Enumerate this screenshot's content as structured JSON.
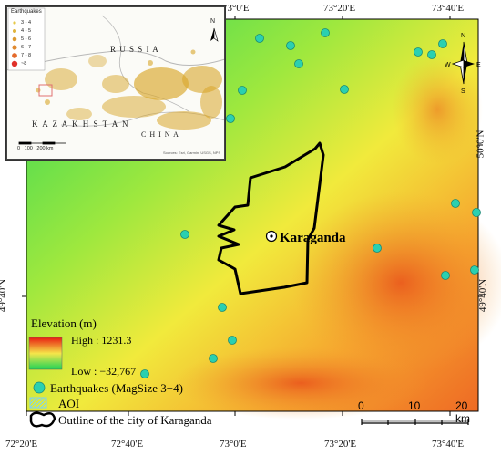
{
  "map": {
    "lon_labels_top": [
      "73°0'E",
      "73°20'E",
      "73°40'E"
    ],
    "lon_labels_bottom": [
      "72°20'E",
      "72°40'E",
      "73°0'E",
      "73°20'E",
      "73°40'E"
    ],
    "lat_labels_right": [
      "50°0'N",
      "49°40'N"
    ],
    "lat_labels_left": [
      "49°40'N"
    ],
    "city_label": "Karaganda",
    "colors": {
      "high": "#e81c10",
      "mid": "#f6e64a",
      "low": "#1ed456",
      "quake": "#2ad0b0",
      "outline": "#000000"
    }
  },
  "inset": {
    "legend_title": "Earthquakes",
    "legend_items": [
      "3 - 4",
      "4 - 5",
      "5 - 6",
      "6 - 7",
      "7 - 8",
      "~8"
    ],
    "country_russia": "R U S S I A",
    "country_kazakhstan": "K A Z A K H S T A N",
    "country_china": "C H I N A",
    "scale_label": "0   100   200 km",
    "north_label": "N",
    "credit": "Sources: Esri, Garmin, USGS, NPS"
  },
  "legend": {
    "elevation_title": "Elevation (m)",
    "high_label": "High : 1231.3",
    "low_label": "Low : −32,767",
    "quake_label": "Earthquakes (MagSize 3−4)",
    "aoi_label": "AOI",
    "outline_label": "Outline of the city of Karaganda"
  },
  "scale": {
    "ticks": [
      "0",
      "10",
      "20 km"
    ]
  },
  "north_arrow": {
    "n": "N",
    "e": "E",
    "w": "W",
    "s": "S"
  }
}
